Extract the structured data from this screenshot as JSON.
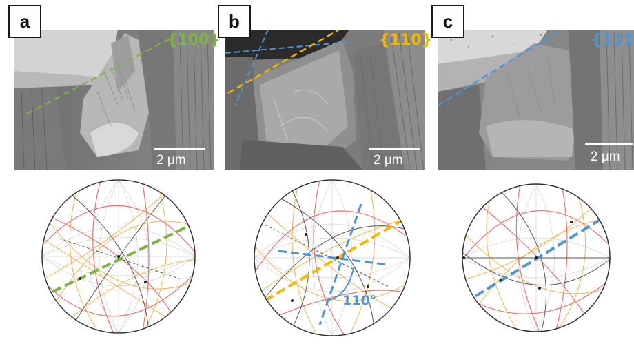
{
  "panels": [
    {
      "label": "a",
      "plane": "{100}",
      "scale_bar": "2 μm"
    },
    {
      "label": "b",
      "plane": "{110}",
      "scale_bar": "2 μm",
      "angle": "110°"
    },
    {
      "label": "c",
      "plane": "{111}",
      "scale_bar": "2 μm"
    }
  ],
  "colors": {
    "plane_100": "#7cb342",
    "plane_110": "#f5b800",
    "plane_111": "#4f95d6",
    "great_circle_red": "#e8736f",
    "great_circle_orange": "#f3b44f",
    "great_circle_dark": "#555555"
  }
}
